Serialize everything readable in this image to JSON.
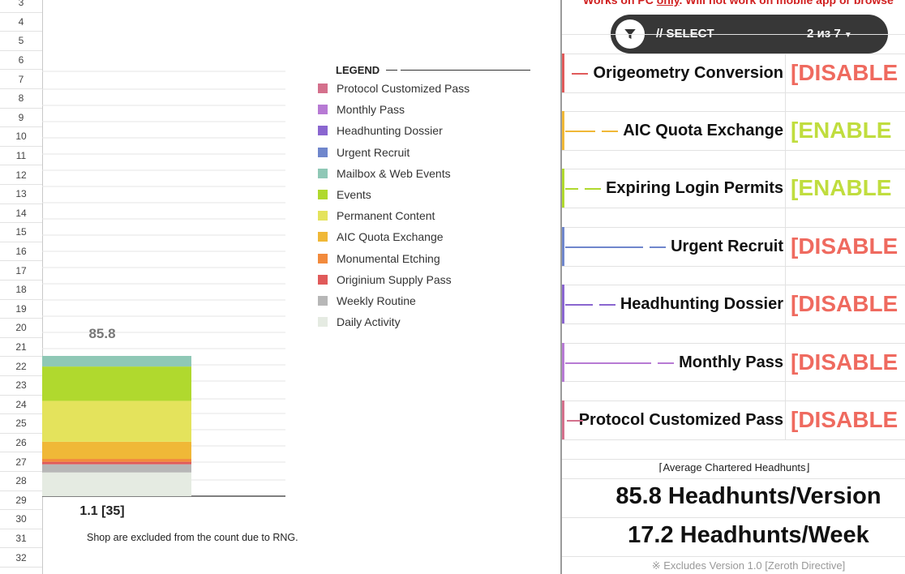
{
  "row_numbers": [
    "3",
    "4",
    "5",
    "6",
    "7",
    "8",
    "9",
    "10",
    "11",
    "12",
    "13",
    "14",
    "15",
    "16",
    "17",
    "18",
    "19",
    "20",
    "21",
    "22",
    "23",
    "24",
    "25",
    "26",
    "27",
    "28",
    "29",
    "30",
    "31",
    "32"
  ],
  "legend": {
    "title": "LEGEND",
    "items": [
      {
        "label": "Protocol Customized Pass",
        "color": "#d4708c"
      },
      {
        "label": "Monthly Pass",
        "color": "#b77ad4"
      },
      {
        "label": "Headhunting Dossier",
        "color": "#8a66d0"
      },
      {
        "label": "Urgent Recruit",
        "color": "#6f86cc"
      },
      {
        "label": "Mailbox & Web Events",
        "color": "#8fc8b6"
      },
      {
        "label": "Events",
        "color": "#b0d92e"
      },
      {
        "label": "Permanent Content",
        "color": "#e4e35c"
      },
      {
        "label": "AIC Quota Exchange",
        "color": "#f0b837"
      },
      {
        "label": "Monumental Etching",
        "color": "#f28a3c"
      },
      {
        "label": "Originium Supply Pass",
        "color": "#e05a5a"
      },
      {
        "label": "Weekly Routine",
        "color": "#b7b7b7"
      },
      {
        "label": "Daily Activity",
        "color": "#e5ebe2"
      }
    ]
  },
  "chart_data": {
    "type": "bar",
    "stacked": true,
    "categories": [
      "1.1 [35]"
    ],
    "total_label": "85.8",
    "ylim": [
      0,
      100
    ],
    "grid": true,
    "series": [
      {
        "name": "Daily Activity",
        "color": "#e5ebe2",
        "values": [
          14.5
        ]
      },
      {
        "name": "Weekly Routine",
        "color": "#b7b7b7",
        "values": [
          5.0
        ]
      },
      {
        "name": "Originium Supply Pass",
        "color": "#e05a5a",
        "values": [
          1.5
        ]
      },
      {
        "name": "Monumental Etching",
        "color": "#f28a3c",
        "values": [
          1.8
        ]
      },
      {
        "name": "AIC Quota Exchange",
        "color": "#f0b837",
        "values": [
          10.5
        ]
      },
      {
        "name": "Permanent Content",
        "color": "#e4e35c",
        "values": [
          25.0
        ]
      },
      {
        "name": "Events",
        "color": "#b0d92e",
        "values": [
          21.0
        ]
      },
      {
        "name": "Mailbox & Web Events",
        "color": "#8fc8b6",
        "values": [
          6.5
        ]
      },
      {
        "name": "Urgent Recruit",
        "color": "#6f86cc",
        "values": [
          0
        ]
      },
      {
        "name": "Headhunting Dossier",
        "color": "#8a66d0",
        "values": [
          0
        ]
      },
      {
        "name": "Monthly Pass",
        "color": "#b77ad4",
        "values": [
          0
        ]
      },
      {
        "name": "Protocol Customized Pass",
        "color": "#d4708c",
        "values": [
          0
        ]
      }
    ]
  },
  "footnote": "Shop are excluded from the count due to RNG.",
  "panel": {
    "warning_prefix": "Works on PC ",
    "warning_emphasis": "only",
    "warning_suffix": ". Will not work on mobile app or browse",
    "filter": {
      "label": "// SELECT",
      "count": "2 из 7"
    },
    "rows": [
      {
        "name": "Origeometry Conversion",
        "status": "[DISABLE",
        "status_color": "#ef6a5f",
        "color": "#e05a5a"
      },
      {
        "name": "AIC Quota Exchange",
        "status": "[ENABLE",
        "status_color": "#c0dd3e",
        "color": "#f0b837"
      },
      {
        "name": "Expiring Login Permits",
        "status": "[ENABLE",
        "status_color": "#c0dd3e",
        "color": "#b0d92e"
      },
      {
        "name": "Urgent Recruit",
        "status": "[DISABLE",
        "status_color": "#ef6a5f",
        "color": "#6f86cc"
      },
      {
        "name": "Headhunting Dossier",
        "status": "[DISABLE",
        "status_color": "#ef6a5f",
        "color": "#8a66d0"
      },
      {
        "name": "Monthly Pass",
        "status": "[DISABLE",
        "status_color": "#ef6a5f",
        "color": "#b77ad4"
      },
      {
        "name": "Protocol Customized Pass",
        "status": "[DISABLE",
        "status_color": "#ef6a5f",
        "color": "#d4708c"
      }
    ],
    "avg_label": "⌈Average Chartered Headhunts⌋",
    "stat_version": "85.8 Headhunts/Version",
    "stat_week": "17.2 Headhunts/Week",
    "excludes": "※ Excludes Version 1.0 [Zeroth Directive]"
  }
}
